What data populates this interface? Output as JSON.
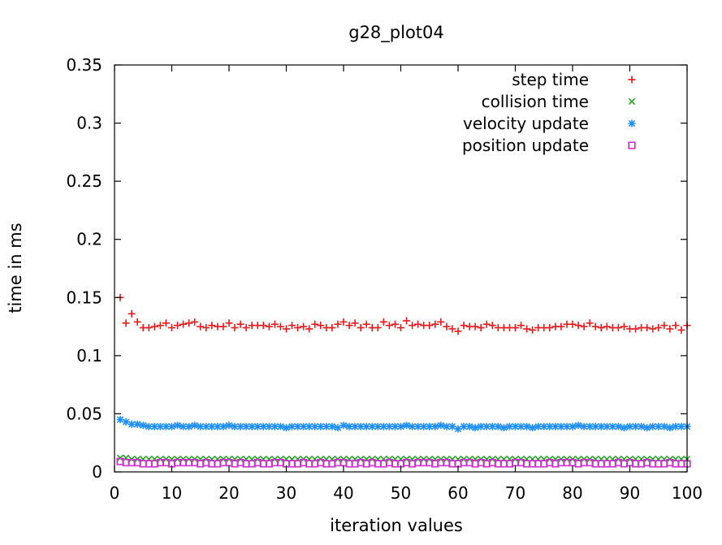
{
  "chart_data": {
    "type": "scatter",
    "title": "g28_plot04",
    "xlabel": "iteration values",
    "ylabel": "time in ms",
    "xlim": [
      0,
      100
    ],
    "ylim": [
      0,
      0.35
    ],
    "xticks": [
      "0",
      "10",
      "20",
      "30",
      "40",
      "50",
      "60",
      "70",
      "80",
      "90",
      "100"
    ],
    "yticks": [
      "0",
      "0.05",
      "0.1",
      "0.15",
      "0.2",
      "0.25",
      "0.3",
      "0.35"
    ],
    "legend_position": "top-right",
    "grid": false,
    "series": [
      {
        "name": "step time",
        "marker": "plus",
        "color": "#e41a1c",
        "x": [
          1,
          2,
          3,
          4,
          5,
          6,
          7,
          8,
          9,
          10,
          11,
          12,
          13,
          14,
          15,
          16,
          17,
          18,
          19,
          20,
          21,
          22,
          23,
          24,
          25,
          26,
          27,
          28,
          29,
          30,
          31,
          32,
          33,
          34,
          35,
          36,
          37,
          38,
          39,
          40,
          41,
          42,
          43,
          44,
          45,
          46,
          47,
          48,
          49,
          50,
          51,
          52,
          53,
          54,
          55,
          56,
          57,
          58,
          59,
          60,
          61,
          62,
          63,
          64,
          65,
          66,
          67,
          68,
          69,
          70,
          71,
          72,
          73,
          74,
          75,
          76,
          77,
          78,
          79,
          80,
          81,
          82,
          83,
          84,
          85,
          86,
          87,
          88,
          89,
          90,
          91,
          92,
          93,
          94,
          95,
          96,
          97,
          98,
          99,
          100
        ],
        "y": [
          0.15,
          0.128,
          0.136,
          0.129,
          0.124,
          0.124,
          0.125,
          0.126,
          0.128,
          0.124,
          0.126,
          0.127,
          0.128,
          0.129,
          0.125,
          0.124,
          0.126,
          0.125,
          0.125,
          0.128,
          0.124,
          0.127,
          0.124,
          0.126,
          0.126,
          0.126,
          0.125,
          0.127,
          0.125,
          0.123,
          0.126,
          0.124,
          0.125,
          0.123,
          0.127,
          0.126,
          0.124,
          0.124,
          0.127,
          0.129,
          0.126,
          0.128,
          0.124,
          0.127,
          0.124,
          0.124,
          0.129,
          0.126,
          0.127,
          0.124,
          0.13,
          0.126,
          0.127,
          0.126,
          0.126,
          0.127,
          0.129,
          0.125,
          0.123,
          0.121,
          0.126,
          0.125,
          0.125,
          0.124,
          0.127,
          0.126,
          0.124,
          0.124,
          0.124,
          0.124,
          0.126,
          0.123,
          0.122,
          0.124,
          0.124,
          0.124,
          0.125,
          0.125,
          0.127,
          0.127,
          0.126,
          0.125,
          0.128,
          0.125,
          0.124,
          0.125,
          0.124,
          0.124,
          0.125,
          0.123,
          0.123,
          0.124,
          0.124,
          0.123,
          0.124,
          0.126,
          0.123,
          0.126,
          0.122,
          0.126
        ]
      },
      {
        "name": "collision time",
        "marker": "cross",
        "color": "#2ca02c",
        "x": [
          1,
          2,
          3,
          4,
          5,
          6,
          7,
          8,
          9,
          10,
          11,
          12,
          13,
          14,
          15,
          16,
          17,
          18,
          19,
          20,
          21,
          22,
          23,
          24,
          25,
          26,
          27,
          28,
          29,
          30,
          31,
          32,
          33,
          34,
          35,
          36,
          37,
          38,
          39,
          40,
          41,
          42,
          43,
          44,
          45,
          46,
          47,
          48,
          49,
          50,
          51,
          52,
          53,
          54,
          55,
          56,
          57,
          58,
          59,
          60,
          61,
          62,
          63,
          64,
          65,
          66,
          67,
          68,
          69,
          70,
          71,
          72,
          73,
          74,
          75,
          76,
          77,
          78,
          79,
          80,
          81,
          82,
          83,
          84,
          85,
          86,
          87,
          88,
          89,
          90,
          91,
          92,
          93,
          94,
          95,
          96,
          97,
          98,
          99,
          100
        ],
        "y": [
          0.012,
          0.012,
          0.011,
          0.011,
          0.011,
          0.011,
          0.011,
          0.011,
          0.011,
          0.011,
          0.011,
          0.011,
          0.011,
          0.011,
          0.011,
          0.011,
          0.011,
          0.011,
          0.011,
          0.011,
          0.011,
          0.011,
          0.011,
          0.011,
          0.011,
          0.011,
          0.011,
          0.011,
          0.011,
          0.011,
          0.011,
          0.011,
          0.011,
          0.011,
          0.011,
          0.011,
          0.011,
          0.011,
          0.011,
          0.011,
          0.011,
          0.011,
          0.011,
          0.011,
          0.011,
          0.011,
          0.011,
          0.011,
          0.011,
          0.011,
          0.011,
          0.011,
          0.011,
          0.011,
          0.011,
          0.011,
          0.011,
          0.011,
          0.011,
          0.011,
          0.011,
          0.011,
          0.011,
          0.011,
          0.011,
          0.011,
          0.011,
          0.011,
          0.011,
          0.011,
          0.011,
          0.011,
          0.011,
          0.011,
          0.011,
          0.011,
          0.011,
          0.011,
          0.011,
          0.011,
          0.011,
          0.011,
          0.011,
          0.011,
          0.011,
          0.011,
          0.011,
          0.011,
          0.011,
          0.011,
          0.011,
          0.011,
          0.011,
          0.011,
          0.011,
          0.011,
          0.011,
          0.011,
          0.011,
          0.011
        ]
      },
      {
        "name": "velocity update",
        "marker": "star",
        "color": "#1f8fff",
        "x": [
          1,
          2,
          3,
          4,
          5,
          6,
          7,
          8,
          9,
          10,
          11,
          12,
          13,
          14,
          15,
          16,
          17,
          18,
          19,
          20,
          21,
          22,
          23,
          24,
          25,
          26,
          27,
          28,
          29,
          30,
          31,
          32,
          33,
          34,
          35,
          36,
          37,
          38,
          39,
          40,
          41,
          42,
          43,
          44,
          45,
          46,
          47,
          48,
          49,
          50,
          51,
          52,
          53,
          54,
          55,
          56,
          57,
          58,
          59,
          60,
          61,
          62,
          63,
          64,
          65,
          66,
          67,
          68,
          69,
          70,
          71,
          72,
          73,
          74,
          75,
          76,
          77,
          78,
          79,
          80,
          81,
          82,
          83,
          84,
          85,
          86,
          87,
          88,
          89,
          90,
          91,
          92,
          93,
          94,
          95,
          96,
          97,
          98,
          99,
          100
        ],
        "y": [
          0.045,
          0.043,
          0.041,
          0.041,
          0.04,
          0.039,
          0.039,
          0.039,
          0.039,
          0.039,
          0.04,
          0.039,
          0.039,
          0.04,
          0.039,
          0.039,
          0.039,
          0.039,
          0.039,
          0.04,
          0.039,
          0.039,
          0.039,
          0.039,
          0.039,
          0.039,
          0.039,
          0.039,
          0.039,
          0.038,
          0.039,
          0.039,
          0.039,
          0.039,
          0.039,
          0.039,
          0.039,
          0.039,
          0.038,
          0.04,
          0.039,
          0.039,
          0.039,
          0.039,
          0.039,
          0.039,
          0.039,
          0.039,
          0.039,
          0.039,
          0.04,
          0.039,
          0.039,
          0.039,
          0.039,
          0.039,
          0.04,
          0.039,
          0.039,
          0.037,
          0.039,
          0.039,
          0.038,
          0.039,
          0.039,
          0.039,
          0.039,
          0.038,
          0.039,
          0.039,
          0.039,
          0.039,
          0.038,
          0.039,
          0.039,
          0.039,
          0.039,
          0.039,
          0.039,
          0.039,
          0.04,
          0.039,
          0.039,
          0.039,
          0.039,
          0.039,
          0.039,
          0.039,
          0.038,
          0.039,
          0.039,
          0.039,
          0.038,
          0.039,
          0.039,
          0.039,
          0.038,
          0.039,
          0.039,
          0.039
        ]
      },
      {
        "name": "position update",
        "marker": "square",
        "color": "#cc33cc",
        "x": [
          1,
          2,
          3,
          4,
          5,
          6,
          7,
          8,
          9,
          10,
          11,
          12,
          13,
          14,
          15,
          16,
          17,
          18,
          19,
          20,
          21,
          22,
          23,
          24,
          25,
          26,
          27,
          28,
          29,
          30,
          31,
          32,
          33,
          34,
          35,
          36,
          37,
          38,
          39,
          40,
          41,
          42,
          43,
          44,
          45,
          46,
          47,
          48,
          49,
          50,
          51,
          52,
          53,
          54,
          55,
          56,
          57,
          58,
          59,
          60,
          61,
          62,
          63,
          64,
          65,
          66,
          67,
          68,
          69,
          70,
          71,
          72,
          73,
          74,
          75,
          76,
          77,
          78,
          79,
          80,
          81,
          82,
          83,
          84,
          85,
          86,
          87,
          88,
          89,
          90,
          91,
          92,
          93,
          94,
          95,
          96,
          97,
          98,
          99,
          100
        ],
        "y": [
          0.009,
          0.008,
          0.008,
          0.008,
          0.007,
          0.007,
          0.007,
          0.008,
          0.008,
          0.007,
          0.008,
          0.008,
          0.008,
          0.008,
          0.007,
          0.008,
          0.007,
          0.007,
          0.008,
          0.008,
          0.007,
          0.008,
          0.007,
          0.007,
          0.008,
          0.007,
          0.007,
          0.008,
          0.008,
          0.007,
          0.007,
          0.007,
          0.008,
          0.007,
          0.007,
          0.008,
          0.007,
          0.007,
          0.008,
          0.008,
          0.007,
          0.007,
          0.008,
          0.007,
          0.008,
          0.007,
          0.007,
          0.008,
          0.007,
          0.007,
          0.008,
          0.007,
          0.008,
          0.008,
          0.008,
          0.007,
          0.008,
          0.008,
          0.007,
          0.007,
          0.008,
          0.008,
          0.007,
          0.008,
          0.007,
          0.008,
          0.007,
          0.007,
          0.007,
          0.008,
          0.008,
          0.007,
          0.007,
          0.007,
          0.007,
          0.008,
          0.007,
          0.008,
          0.008,
          0.008,
          0.007,
          0.008,
          0.008,
          0.007,
          0.007,
          0.007,
          0.007,
          0.008,
          0.007,
          0.008,
          0.007,
          0.007,
          0.008,
          0.007,
          0.007,
          0.007,
          0.008,
          0.007,
          0.007,
          0.007
        ]
      }
    ]
  }
}
